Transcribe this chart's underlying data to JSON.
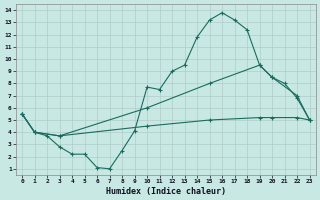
{
  "xlabel": "Humidex (Indice chaleur)",
  "bg_color": "#c8e8e4",
  "grid_color": "#b0ccc8",
  "line_color": "#1a6b5e",
  "xlim": [
    -0.5,
    23.5
  ],
  "ylim": [
    0.5,
    14.5
  ],
  "xticks": [
    0,
    1,
    2,
    3,
    4,
    5,
    6,
    7,
    8,
    9,
    10,
    11,
    12,
    13,
    14,
    15,
    16,
    17,
    18,
    19,
    20,
    21,
    22,
    23
  ],
  "yticks": [
    1,
    2,
    3,
    4,
    5,
    6,
    7,
    8,
    9,
    10,
    11,
    12,
    13,
    14
  ],
  "line1_x": [
    0,
    1,
    2,
    3,
    4,
    5,
    6,
    7,
    8,
    9,
    10,
    11,
    12,
    13,
    14,
    15,
    16,
    17,
    18,
    19,
    20,
    21,
    22,
    23
  ],
  "line1_y": [
    5.5,
    4.0,
    3.7,
    2.8,
    2.2,
    2.2,
    1.1,
    1.0,
    2.5,
    4.1,
    7.7,
    7.5,
    9.0,
    9.5,
    11.8,
    13.2,
    13.8,
    13.2,
    12.4,
    9.5,
    8.5,
    8.0,
    6.8,
    5.0
  ],
  "line2_x": [
    0,
    1,
    3,
    10,
    15,
    19,
    20,
    22,
    23
  ],
  "line2_y": [
    5.5,
    4.0,
    3.7,
    6.0,
    8.0,
    9.5,
    8.5,
    7.0,
    5.0
  ],
  "line3_x": [
    0,
    1,
    3,
    10,
    15,
    19,
    20,
    22,
    23
  ],
  "line3_y": [
    5.5,
    4.0,
    3.7,
    4.5,
    5.0,
    5.2,
    5.2,
    5.2,
    5.0
  ]
}
